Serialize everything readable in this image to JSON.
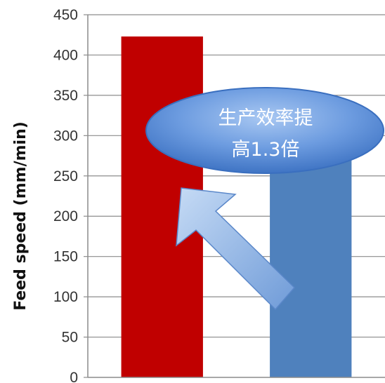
{
  "chart_data": {
    "type": "bar",
    "categories": [
      "",
      ""
    ],
    "values": [
      423,
      275
    ],
    "colors": [
      "#c00000",
      "#4f81bd"
    ],
    "xlabel": "",
    "ylabel": "Feed speed (mm/min)",
    "ylim": [
      0,
      450
    ],
    "yticks": [
      0,
      50,
      100,
      150,
      200,
      250,
      300,
      350,
      400,
      450
    ],
    "grid": true,
    "legend": "none",
    "annotation": {
      "lines": [
        "生产效率提",
        "高1.3倍"
      ],
      "arrow_direction": "up-left",
      "ellipse_color": "#5b8fd6",
      "arrow_color": "#8fb4e3"
    }
  }
}
